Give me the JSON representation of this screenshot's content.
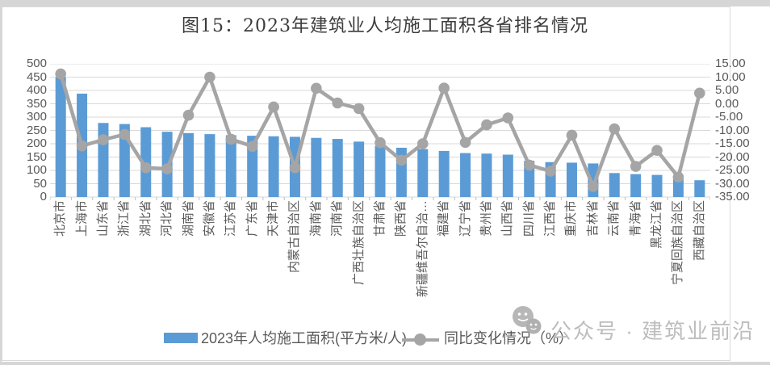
{
  "title": "图15：2023年建筑业人均施工面积各省排名情况",
  "watermark": {
    "text": "公众号 · 建筑业前沿",
    "icon": "wechat-emoji-icon"
  },
  "legend": [
    {
      "label": "2023年人均施工面积(平方米/人)",
      "type": "bar",
      "color": "#5B9BD5"
    },
    {
      "label": "同比变化情况（%）",
      "type": "line",
      "color": "#A5A5A5"
    }
  ],
  "chart_data": {
    "type": "bar",
    "subtype": "bar-line-combo",
    "title": "图15：2023年建筑业人均施工面积各省排名情况",
    "grid": true,
    "legend_position": "bottom",
    "categories": [
      "北京市",
      "上海市",
      "山东省",
      "浙江省",
      "湖北省",
      "河北省",
      "湖南省",
      "安徽省",
      "江苏省",
      "广东省",
      "天津市",
      "内蒙古自治区",
      "海南省",
      "河南省",
      "广西壮族自治区",
      "甘肃省",
      "陕西省",
      "新疆维吾尔自治…",
      "福建省",
      "辽宁省",
      "贵州省",
      "山西省",
      "四川省",
      "江西省",
      "重庆市",
      "吉林省",
      "云南省",
      "青海省",
      "黑龙江省",
      "宁夏回族自治区",
      "西藏自治区"
    ],
    "series": [
      {
        "name": "2023年人均施工面积(平方米/人)",
        "type": "bar",
        "axis": "left",
        "color": "#5B9BD5",
        "values": [
          450,
          388,
          278,
          274,
          262,
          245,
          240,
          236,
          232,
          230,
          228,
          226,
          222,
          218,
          208,
          192,
          185,
          180,
          173,
          165,
          163,
          159,
          136,
          131,
          129,
          126,
          90,
          86,
          83,
          78,
          63
        ]
      },
      {
        "name": "同比变化情况（%）",
        "type": "line",
        "axis": "right",
        "color": "#A5A5A5",
        "values": [
          11.2,
          -15.8,
          -13.5,
          -11.5,
          -24.0,
          -24.4,
          -4.3,
          10.0,
          -13.3,
          -16.0,
          -1.2,
          -24.0,
          5.8,
          0.3,
          -1.8,
          -14.6,
          -21.2,
          -15.0,
          5.9,
          -14.5,
          -7.9,
          -5.3,
          -23.0,
          -25.3,
          -11.8,
          -31.0,
          -9.4,
          -23.5,
          -17.5,
          -27.5,
          4.0
        ]
      }
    ],
    "left_axis": {
      "min": 0,
      "max": 500,
      "step": 50,
      "ticks": [
        "500",
        "450",
        "400",
        "350",
        "300",
        "250",
        "200",
        "150",
        "100",
        "50",
        "0"
      ]
    },
    "right_axis": {
      "min": -35,
      "max": 15,
      "step": 5,
      "ticks": [
        "15.00",
        "10.00",
        "5.00",
        "0.00",
        "-5.00",
        "-10.00",
        "-15.00",
        "-20.00",
        "-25.00",
        "-30.00",
        "-35.00"
      ]
    },
    "gridline_color": "#D9D9D9"
  }
}
